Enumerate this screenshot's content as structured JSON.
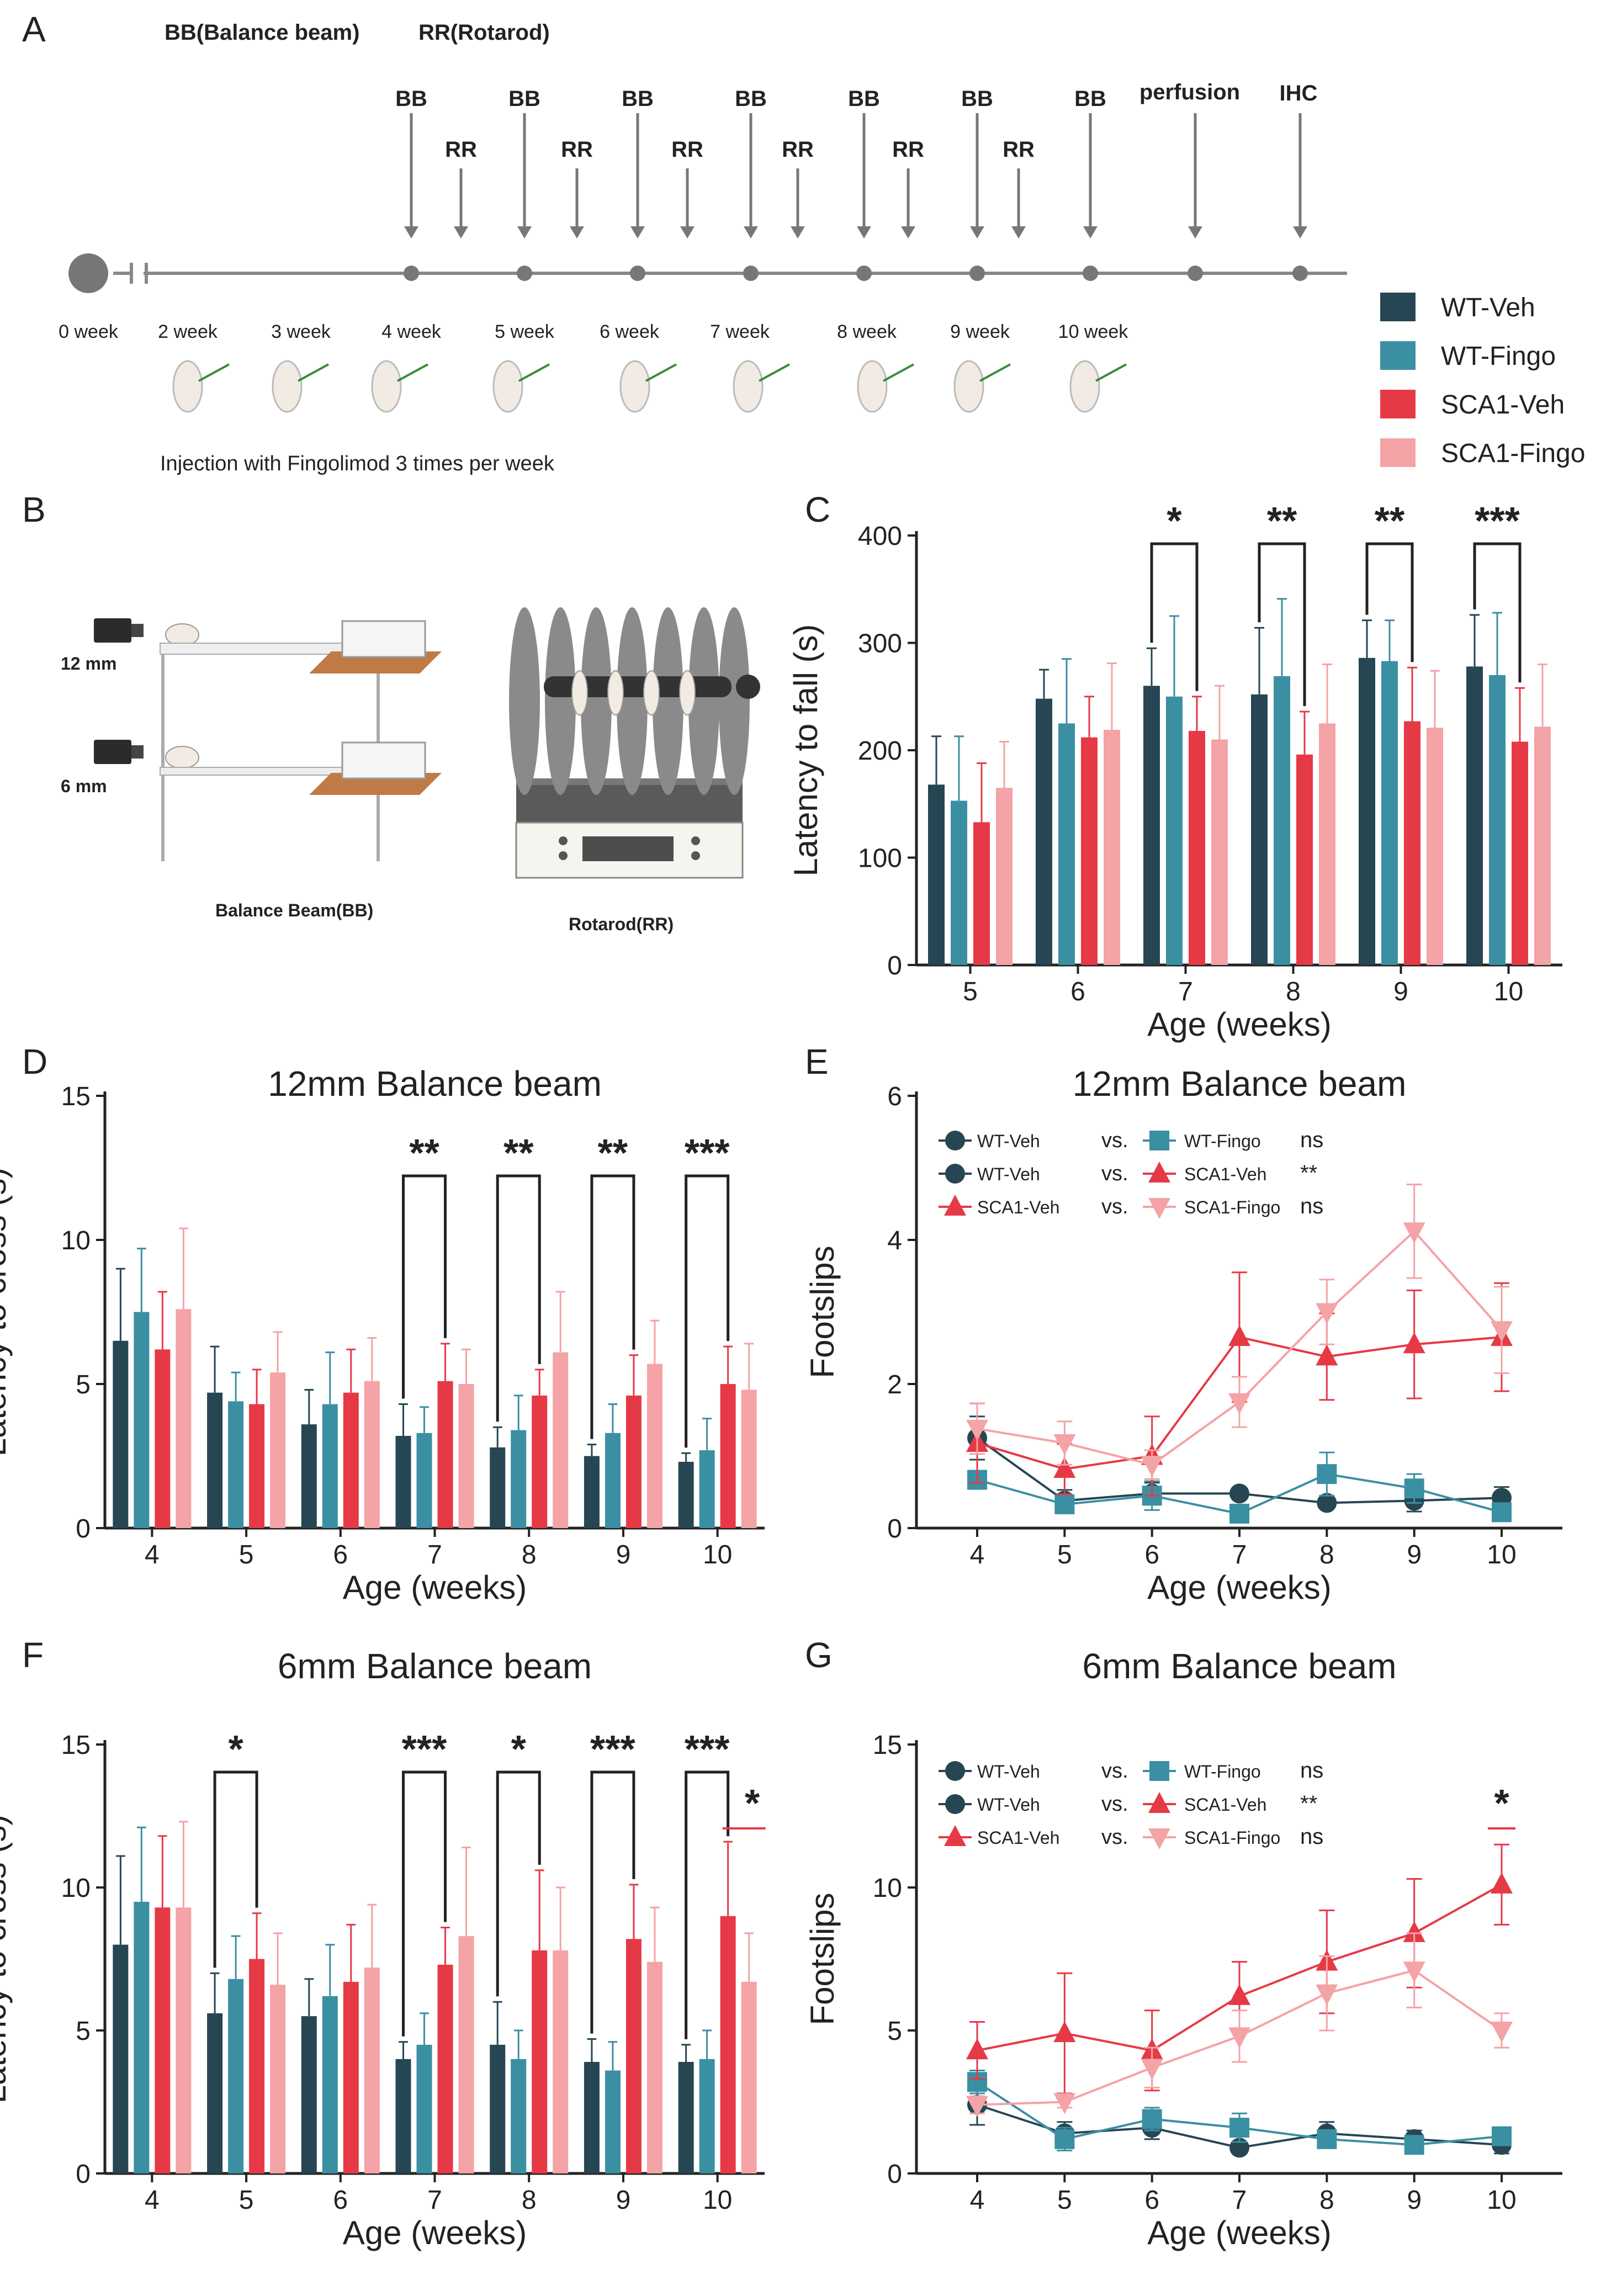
{
  "panel_letters": {
    "a": "A",
    "b": "B",
    "c": "C",
    "d": "D",
    "e": "E",
    "f": "F",
    "g": "G"
  },
  "colors": {
    "WT-Veh": "#264653",
    "WT-Fingo": "#3b8fa3",
    "SCA1-Veh": "#e63946",
    "SCA1-Fingo": "#f4a3a6",
    "axis": "#222222",
    "timeline": "#888888"
  },
  "legend": {
    "items": [
      "WT-Veh",
      "WT-Fingo",
      "SCA1-Veh",
      "SCA1-Fingo"
    ]
  },
  "timeline": {
    "title_bb": "BB(Balance beam)",
    "title_rr": "RR(Rotarod)",
    "bb": "BB",
    "rr": "RR",
    "perfusion": "perfusion",
    "ihc": "IHC",
    "weeks": [
      "0 week",
      "2 week",
      "3 week",
      "4 week",
      "5 week",
      "6 week",
      "7 week",
      "8 week",
      "9 week",
      "10 week"
    ],
    "caption": "Injection with Fingolimod 3 times per week"
  },
  "panel_b": {
    "label_12": "12 mm",
    "label_6": "6 mm",
    "caption_bb": "Balance Beam(BB)",
    "caption_rr": "Rotarod(RR)"
  },
  "chart_data": [
    {
      "id": "C",
      "type": "bar",
      "title": "",
      "xlabel": "Age (weeks)",
      "ylabel": "Latency to fall (s)",
      "categories": [
        "5",
        "6",
        "7",
        "8",
        "9",
        "10"
      ],
      "ylim": [
        0,
        400
      ],
      "yticks": [
        0,
        100,
        200,
        300,
        400
      ],
      "series": [
        {
          "name": "WT-Veh",
          "values": [
            168,
            248,
            260,
            252,
            286,
            278
          ],
          "errors": [
            45,
            27,
            35,
            62,
            35,
            48
          ]
        },
        {
          "name": "WT-Fingo",
          "values": [
            153,
            225,
            250,
            269,
            283,
            270
          ],
          "errors": [
            60,
            60,
            75,
            72,
            38,
            58
          ]
        },
        {
          "name": "SCA1-Veh",
          "values": [
            133,
            212,
            218,
            196,
            227,
            208
          ],
          "errors": [
            55,
            38,
            32,
            40,
            50,
            50
          ]
        },
        {
          "name": "SCA1-Fingo",
          "values": [
            165,
            219,
            210,
            225,
            221,
            222
          ],
          "errors": [
            43,
            62,
            50,
            55,
            53,
            58
          ]
        }
      ],
      "significance": [
        {
          "category": "7",
          "label": "*"
        },
        {
          "category": "8",
          "label": "**"
        },
        {
          "category": "9",
          "label": "**"
        },
        {
          "category": "10",
          "label": "***"
        }
      ]
    },
    {
      "id": "D",
      "type": "bar",
      "title": "12mm Balance beam",
      "xlabel": "Age (weeks)",
      "ylabel": "Latency to cross (s)",
      "categories": [
        "4",
        "5",
        "6",
        "7",
        "8",
        "9",
        "10"
      ],
      "ylim": [
        0,
        15
      ],
      "yticks": [
        0,
        5,
        10,
        15
      ],
      "series": [
        {
          "name": "WT-Veh",
          "values": [
            6.5,
            4.7,
            3.6,
            3.2,
            2.8,
            2.5,
            2.3
          ],
          "errors": [
            2.5,
            1.6,
            1.2,
            1.1,
            0.7,
            0.4,
            0.3
          ]
        },
        {
          "name": "WT-Fingo",
          "values": [
            7.5,
            4.4,
            4.3,
            3.3,
            3.4,
            3.3,
            2.7
          ],
          "errors": [
            2.2,
            1.0,
            1.8,
            0.9,
            1.2,
            1.0,
            1.1
          ]
        },
        {
          "name": "SCA1-Veh",
          "values": [
            6.2,
            4.3,
            4.7,
            5.1,
            4.6,
            4.6,
            5.0
          ],
          "errors": [
            2.0,
            1.2,
            1.5,
            1.3,
            0.9,
            1.4,
            1.3
          ]
        },
        {
          "name": "SCA1-Fingo",
          "values": [
            7.6,
            5.4,
            5.1,
            5.0,
            6.1,
            5.7,
            4.8
          ],
          "errors": [
            2.8,
            1.4,
            1.5,
            1.2,
            2.1,
            1.5,
            1.6
          ]
        }
      ],
      "significance": [
        {
          "category": "7",
          "label": "**"
        },
        {
          "category": "8",
          "label": "**"
        },
        {
          "category": "9",
          "label": "**"
        },
        {
          "category": "10",
          "label": "***"
        }
      ]
    },
    {
      "id": "E",
      "type": "line",
      "title": "12mm Balance beam",
      "xlabel": "Age (weeks)",
      "ylabel": "Footslips",
      "x": [
        4,
        5,
        6,
        7,
        8,
        9,
        10
      ],
      "ylim": [
        0,
        6
      ],
      "yticks": [
        0,
        2,
        4,
        6
      ],
      "series": [
        {
          "name": "WT-Veh",
          "values": [
            1.25,
            0.38,
            0.48,
            0.48,
            0.35,
            0.38,
            0.42
          ],
          "errors": [
            0.3,
            0.15,
            0.15,
            0.05,
            0.05,
            0.15,
            0.15
          ]
        },
        {
          "name": "WT-Fingo",
          "values": [
            0.67,
            0.33,
            0.45,
            0.2,
            0.75,
            0.55,
            0.22
          ],
          "errors": [
            0.1,
            0.1,
            0.2,
            0.05,
            0.3,
            0.2,
            0.05
          ]
        },
        {
          "name": "SCA1-Veh",
          "values": [
            1.18,
            0.82,
            1.0,
            2.65,
            2.38,
            2.55,
            2.65
          ],
          "errors": [
            0.55,
            0.35,
            0.55,
            0.9,
            0.6,
            0.75,
            0.75
          ]
        },
        {
          "name": "SCA1-Fingo",
          "values": [
            1.38,
            1.18,
            0.88,
            1.75,
            3.0,
            4.12,
            2.75
          ],
          "errors": [
            0.35,
            0.3,
            0.2,
            0.35,
            0.45,
            0.65,
            0.6
          ]
        }
      ],
      "comparisons": [
        {
          "a": "WT-Veh",
          "vs": "vs.",
          "b": "WT-Fingo",
          "sig": "ns"
        },
        {
          "a": "WT-Veh",
          "vs": "vs.",
          "b": "SCA1-Veh",
          "sig": "**"
        },
        {
          "a": "SCA1-Veh",
          "vs": "vs.",
          "b": "SCA1-Fingo",
          "sig": "ns"
        }
      ]
    },
    {
      "id": "F",
      "type": "bar",
      "title": "6mm Balance beam",
      "xlabel": "Age (weeks)",
      "ylabel": "Latency to cross (s)",
      "categories": [
        "4",
        "5",
        "6",
        "7",
        "8",
        "9",
        "10"
      ],
      "ylim": [
        0,
        15
      ],
      "yticks": [
        0,
        5,
        10,
        15
      ],
      "series": [
        {
          "name": "WT-Veh",
          "values": [
            8.0,
            5.6,
            5.5,
            4.0,
            4.5,
            3.9,
            3.9
          ],
          "errors": [
            3.1,
            1.4,
            1.3,
            0.6,
            1.5,
            0.8,
            0.6
          ]
        },
        {
          "name": "WT-Fingo",
          "values": [
            9.5,
            6.8,
            6.2,
            4.5,
            4.0,
            3.6,
            4.0
          ],
          "errors": [
            2.6,
            1.5,
            1.8,
            1.1,
            1.0,
            1.0,
            1.0
          ]
        },
        {
          "name": "SCA1-Veh",
          "values": [
            9.3,
            7.5,
            6.7,
            7.3,
            7.8,
            8.2,
            9.0
          ],
          "errors": [
            2.5,
            1.6,
            2.0,
            1.3,
            2.8,
            1.9,
            2.6
          ]
        },
        {
          "name": "SCA1-Fingo",
          "values": [
            9.3,
            6.6,
            7.2,
            8.3,
            7.8,
            7.4,
            6.7
          ],
          "errors": [
            3.0,
            1.8,
            2.2,
            3.1,
            2.2,
            1.9,
            1.7
          ]
        }
      ],
      "significance": [
        {
          "category": "5",
          "label": "*"
        },
        {
          "category": "7",
          "label": "***"
        },
        {
          "category": "8",
          "label": "*"
        },
        {
          "category": "9",
          "label": "***"
        },
        {
          "category": "10",
          "label": "***"
        }
      ],
      "red_star": "*"
    },
    {
      "id": "G",
      "type": "line",
      "title": "6mm Balance beam",
      "xlabel": "Age (weeks)",
      "ylabel": "Footslips",
      "x": [
        4,
        5,
        6,
        7,
        8,
        9,
        10
      ],
      "ylim": [
        0,
        15
      ],
      "yticks": [
        0,
        5,
        10,
        15
      ],
      "series": [
        {
          "name": "WT-Veh",
          "values": [
            2.4,
            1.4,
            1.6,
            0.9,
            1.4,
            1.2,
            1.0
          ],
          "errors": [
            0.7,
            0.4,
            0.4,
            0.1,
            0.4,
            0.3,
            0.3
          ]
        },
        {
          "name": "WT-Fingo",
          "values": [
            3.2,
            1.2,
            1.9,
            1.6,
            1.2,
            1.0,
            1.3
          ],
          "errors": [
            0.4,
            0.4,
            0.4,
            0.5,
            0.3,
            0.2,
            0.3
          ]
        },
        {
          "name": "SCA1-Veh",
          "values": [
            4.3,
            4.9,
            4.3,
            6.2,
            7.4,
            8.4,
            10.1
          ],
          "errors": [
            1.0,
            2.1,
            1.4,
            1.2,
            1.8,
            1.9,
            1.4
          ]
        },
        {
          "name": "SCA1-Fingo",
          "values": [
            2.4,
            2.5,
            3.7,
            4.8,
            6.3,
            7.1,
            5.0
          ],
          "errors": [
            0.3,
            0.2,
            0.7,
            0.9,
            1.3,
            1.3,
            0.6
          ]
        }
      ],
      "comparisons": [
        {
          "a": "WT-Veh",
          "vs": "vs.",
          "b": "WT-Fingo",
          "sig": "ns"
        },
        {
          "a": "WT-Veh",
          "vs": "vs.",
          "b": "SCA1-Veh",
          "sig": "**"
        },
        {
          "a": "SCA1-Veh",
          "vs": "vs.",
          "b": "SCA1-Fingo",
          "sig": "ns"
        }
      ],
      "red_star": "*"
    }
  ]
}
